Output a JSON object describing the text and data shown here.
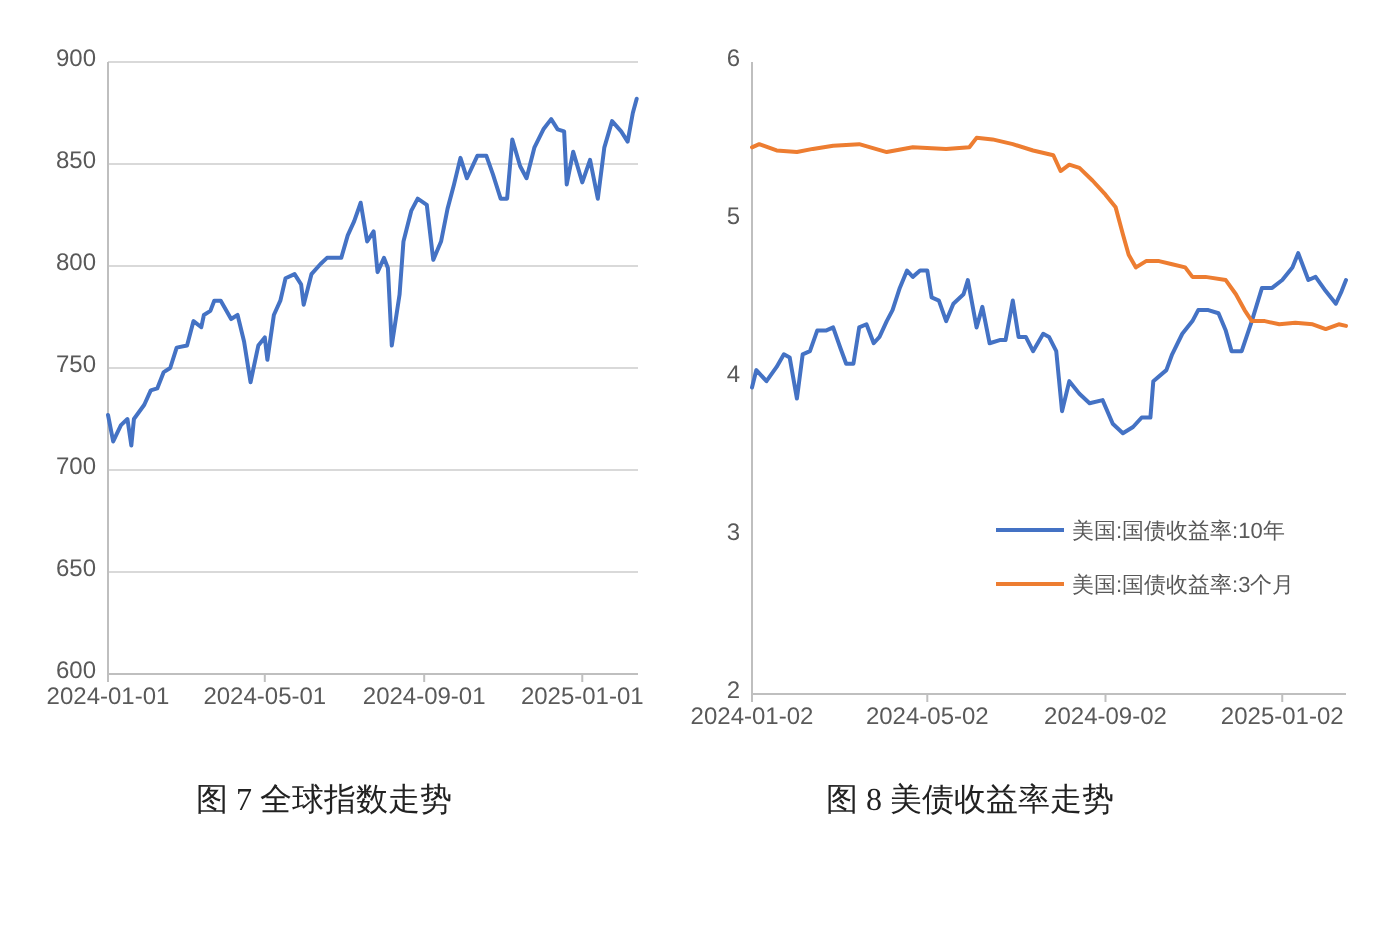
{
  "chart_data": [
    {
      "type": "line",
      "title": "图 7 全球指数走势",
      "color": "#4472c4",
      "grid": "y",
      "legend": false,
      "x": [
        "2024-01-01",
        "2024-01-05",
        "2024-01-11",
        "2024-01-16",
        "2024-01-19",
        "2024-01-21",
        "2024-01-29",
        "2024-02-03",
        "2024-02-08",
        "2024-02-13",
        "2024-02-18",
        "2024-02-23",
        "2024-03-02",
        "2024-03-07",
        "2024-03-13",
        "2024-03-15",
        "2024-03-20",
        "2024-03-23",
        "2024-03-28",
        "2024-04-05",
        "2024-04-10",
        "2024-04-15",
        "2024-04-20",
        "2024-04-26",
        "2024-05-01",
        "2024-05-03",
        "2024-05-08",
        "2024-05-13",
        "2024-05-17",
        "2024-05-24",
        "2024-05-29",
        "2024-05-31",
        "2024-06-06",
        "2024-06-13",
        "2024-06-18",
        "2024-06-23",
        "2024-06-29",
        "2024-07-04",
        "2024-07-09",
        "2024-07-14",
        "2024-07-19",
        "2024-07-24",
        "2024-07-27",
        "2024-08-01",
        "2024-08-04",
        "2024-08-07",
        "2024-08-13",
        "2024-08-16",
        "2024-08-22",
        "2024-08-27",
        "2024-09-03",
        "2024-09-08",
        "2024-09-14",
        "2024-09-19",
        "2024-09-24",
        "2024-09-29",
        "2024-10-04",
        "2024-10-12",
        "2024-10-19",
        "2024-10-24",
        "2024-10-30",
        "2024-11-04",
        "2024-11-08",
        "2024-11-14",
        "2024-11-19",
        "2024-11-25",
        "2024-12-02",
        "2024-12-08",
        "2024-12-13",
        "2024-12-18",
        "2024-12-20",
        "2024-12-25",
        "2025-01-01",
        "2025-01-07",
        "2025-01-13",
        "2025-01-18",
        "2025-01-24",
        "2025-01-31",
        "2025-02-05",
        "2025-02-09",
        "2025-02-12"
      ],
      "values": [
        727,
        714,
        722,
        725,
        712,
        725,
        732,
        739,
        740,
        748,
        750,
        760,
        761,
        773,
        770,
        776,
        778,
        783,
        783,
        774,
        776,
        763,
        743,
        761,
        765,
        754,
        776,
        783,
        794,
        796,
        791,
        781,
        796,
        801,
        804,
        804,
        804,
        815,
        822,
        831,
        812,
        817,
        797,
        804,
        799,
        761,
        786,
        812,
        827,
        833,
        830,
        803,
        812,
        828,
        840,
        853,
        843,
        854,
        854,
        845,
        833,
        833,
        862,
        849,
        843,
        858,
        867,
        872,
        867,
        866,
        840,
        856,
        841,
        852,
        833,
        858,
        871,
        866,
        861,
        875,
        882
      ],
      "xlim": [
        "2024-01-01",
        "2025-02-13"
      ],
      "xticks": [
        "2024-01-01",
        "2024-05-01",
        "2024-09-01",
        "2025-01-01"
      ],
      "ylim": [
        600,
        900
      ],
      "yticks": [
        600,
        650,
        700,
        750,
        800,
        850,
        900
      ]
    },
    {
      "type": "line",
      "title": "图 8  美债收益率走势",
      "grid": false,
      "legend": "bottom right",
      "series": [
        {
          "name": "美国:国债收益率:10年",
          "color": "#4472c4",
          "x": [
            "2024-01-02",
            "2024-01-05",
            "2024-01-12",
            "2024-01-19",
            "2024-01-24",
            "2024-01-28",
            "2024-02-02",
            "2024-02-06",
            "2024-02-11",
            "2024-02-16",
            "2024-02-22",
            "2024-02-27",
            "2024-03-03",
            "2024-03-07",
            "2024-03-12",
            "2024-03-16",
            "2024-03-21",
            "2024-03-26",
            "2024-03-30",
            "2024-04-04",
            "2024-04-08",
            "2024-04-13",
            "2024-04-18",
            "2024-04-22",
            "2024-04-27",
            "2024-05-02",
            "2024-05-05",
            "2024-05-10",
            "2024-05-15",
            "2024-05-20",
            "2024-05-27",
            "2024-05-30",
            "2024-06-05",
            "2024-06-09",
            "2024-06-14",
            "2024-06-21",
            "2024-06-25",
            "2024-06-30",
            "2024-07-04",
            "2024-07-09",
            "2024-07-14",
            "2024-07-21",
            "2024-07-25",
            "2024-07-30",
            "2024-08-03",
            "2024-08-08",
            "2024-08-15",
            "2024-08-22",
            "2024-08-31",
            "2024-09-07",
            "2024-09-14",
            "2024-09-21",
            "2024-09-27",
            "2024-10-03",
            "2024-10-05",
            "2024-10-14",
            "2024-10-18",
            "2024-10-25",
            "2024-11-01",
            "2024-11-05",
            "2024-11-12",
            "2024-11-19",
            "2024-11-24",
            "2024-11-28",
            "2024-12-05",
            "2024-12-12",
            "2024-12-19",
            "2024-12-26",
            "2025-01-02",
            "2025-01-09",
            "2025-01-13",
            "2025-01-20",
            "2025-01-25",
            "2025-02-01",
            "2025-02-08",
            "2025-02-12",
            "2025-02-15"
          ],
          "values": [
            3.94,
            4.05,
            3.98,
            4.07,
            4.15,
            4.13,
            3.87,
            4.15,
            4.17,
            4.3,
            4.3,
            4.32,
            4.19,
            4.09,
            4.09,
            4.32,
            4.34,
            4.22,
            4.26,
            4.36,
            4.43,
            4.57,
            4.68,
            4.64,
            4.68,
            4.68,
            4.51,
            4.49,
            4.36,
            4.47,
            4.53,
            4.62,
            4.32,
            4.45,
            4.22,
            4.24,
            4.24,
            4.49,
            4.26,
            4.26,
            4.17,
            4.28,
            4.26,
            4.17,
            3.79,
            3.98,
            3.9,
            3.84,
            3.86,
            3.71,
            3.65,
            3.69,
            3.75,
            3.75,
            3.98,
            4.05,
            4.15,
            4.28,
            4.36,
            4.43,
            4.43,
            4.41,
            4.3,
            4.17,
            4.17,
            4.36,
            4.57,
            4.57,
            4.62,
            4.7,
            4.79,
            4.62,
            4.64,
            4.55,
            4.47,
            4.55,
            4.62
          ]
        },
        {
          "name": "美国:国债收益率:3个月",
          "color": "#ed7d31",
          "x": [
            "2024-01-02",
            "2024-01-07",
            "2024-01-19",
            "2024-02-02",
            "2024-02-13",
            "2024-02-27",
            "2024-03-16",
            "2024-04-04",
            "2024-04-22",
            "2024-05-15",
            "2024-05-31",
            "2024-06-05",
            "2024-06-16",
            "2024-06-30",
            "2024-07-14",
            "2024-07-28",
            "2024-08-02",
            "2024-08-08",
            "2024-08-15",
            "2024-08-24",
            "2024-09-02",
            "2024-09-09",
            "2024-09-14",
            "2024-09-18",
            "2024-09-23",
            "2024-09-30",
            "2024-10-09",
            "2024-10-18",
            "2024-10-27",
            "2024-11-01",
            "2024-11-10",
            "2024-11-24",
            "2024-12-01",
            "2024-12-07",
            "2024-12-12",
            "2024-12-21",
            "2024-12-31",
            "2025-01-11",
            "2025-01-23",
            "2025-02-01",
            "2025-02-10",
            "2025-02-15"
          ],
          "values": [
            5.46,
            5.48,
            5.44,
            5.43,
            5.45,
            5.47,
            5.48,
            5.43,
            5.46,
            5.45,
            5.46,
            5.52,
            5.51,
            5.48,
            5.44,
            5.41,
            5.31,
            5.35,
            5.33,
            5.25,
            5.16,
            5.08,
            4.91,
            4.78,
            4.7,
            4.74,
            4.74,
            4.72,
            4.7,
            4.64,
            4.64,
            4.62,
            4.53,
            4.43,
            4.36,
            4.36,
            4.34,
            4.35,
            4.34,
            4.31,
            4.34,
            4.33
          ]
        }
      ],
      "xlim": [
        "2024-01-02",
        "2025-02-15"
      ],
      "xticks": [
        "2024-01-02",
        "2024-05-02",
        "2024-09-02",
        "2025-01-02"
      ],
      "ylim": [
        2,
        6
      ],
      "yticks": [
        2,
        3,
        4,
        5,
        6
      ]
    }
  ]
}
